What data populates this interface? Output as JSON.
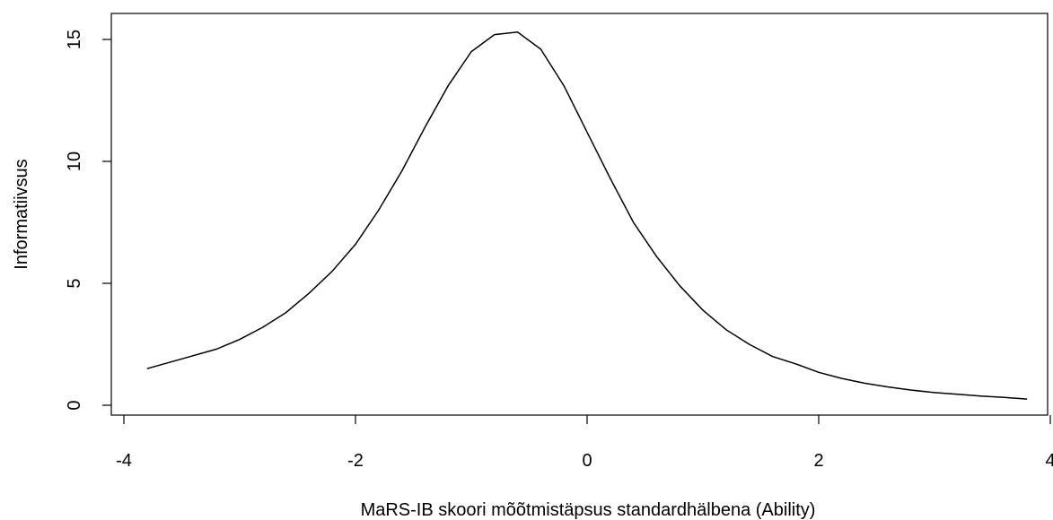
{
  "chart_data": {
    "type": "line",
    "title": "",
    "xlabel": "MaRS-IB skoori mõõtmistäpsus standardhälbena (Ability)",
    "ylabel": "Informatiivsus",
    "xlim": [
      -4,
      4
    ],
    "ylim": [
      0,
      15
    ],
    "xticks": [
      -4,
      -2,
      0,
      2,
      4
    ],
    "yticks": [
      0,
      5,
      10,
      15
    ],
    "x_tick_labels": [
      "-4",
      "-2",
      "0",
      "2",
      "4"
    ],
    "y_tick_labels": [
      "0",
      "5",
      "10",
      "15"
    ],
    "grid": false,
    "series": [
      {
        "x": [
          -3.8,
          -3.5,
          -3.2,
          -3.0,
          -2.8,
          -2.6,
          -2.4,
          -2.2,
          -2.0,
          -1.8,
          -1.6,
          -1.4,
          -1.2,
          -1.0,
          -0.8,
          -0.6,
          -0.4,
          -0.2,
          0.0,
          0.2,
          0.4,
          0.6,
          0.8,
          1.0,
          1.2,
          1.4,
          1.6,
          1.8,
          2.0,
          2.2,
          2.4,
          2.6,
          2.8,
          3.0,
          3.2,
          3.4,
          3.6,
          3.8
        ],
        "y": [
          1.5,
          1.9,
          2.3,
          2.7,
          3.2,
          3.8,
          4.6,
          5.5,
          6.6,
          8.0,
          9.6,
          11.4,
          13.1,
          14.5,
          15.2,
          15.3,
          14.6,
          13.1,
          11.2,
          9.3,
          7.5,
          6.1,
          4.9,
          3.9,
          3.1,
          2.5,
          2.0,
          1.7,
          1.35,
          1.1,
          0.9,
          0.75,
          0.62,
          0.52,
          0.45,
          0.38,
          0.32,
          0.25
        ],
        "color": "#000000"
      }
    ]
  }
}
